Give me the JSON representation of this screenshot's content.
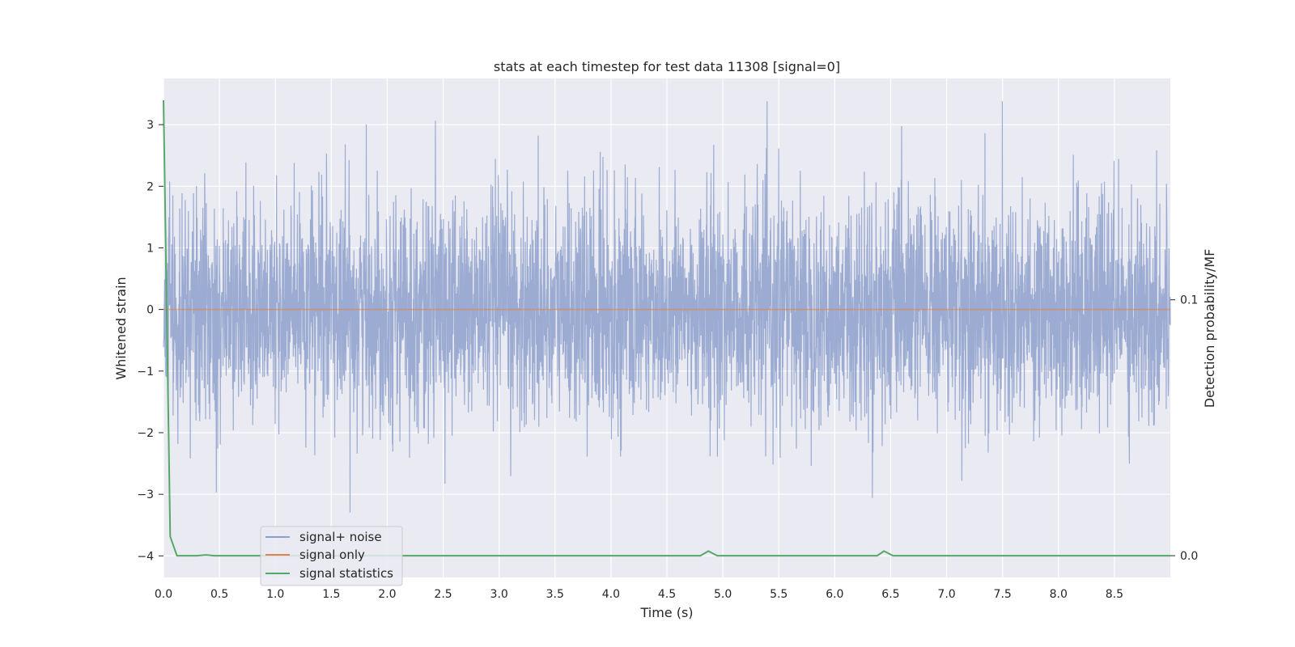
{
  "chart_data": {
    "type": "line",
    "title": "stats at each timestep for test data 11308 [signal=0]",
    "xlabel": "Time (s)",
    "ylabel": "Whitened strain",
    "y2label": "Detection probability/MF",
    "xlim": [
      0.0,
      9.0
    ],
    "ylim": [
      -4.35,
      3.75
    ],
    "y2lim": [
      -0.0085,
      0.1865
    ],
    "xticks": [
      "0.0",
      "0.5",
      "1.0",
      "1.5",
      "2.0",
      "2.5",
      "3.0",
      "3.5",
      "4.0",
      "4.5",
      "5.0",
      "5.5",
      "6.0",
      "6.5",
      "7.0",
      "7.5",
      "8.0",
      "8.5"
    ],
    "yticks": [
      "3",
      "2",
      "1",
      "0",
      "−1",
      "−2",
      "−3",
      "−4"
    ],
    "y2ticks": [
      "0.1",
      "0.0"
    ],
    "grid": true,
    "legend_position": "lower-left",
    "series": [
      {
        "name": "signal+ noise",
        "color": "#8da0cb",
        "axis": "left",
        "description_of_data": "whitened noise, approx. zero mean",
        "std": 0.9,
        "peak_max": 3.38,
        "peak_min": -4.0,
        "samples": 4400
      },
      {
        "name": "signal only",
        "color": "#dd8452",
        "axis": "left",
        "x": [
          0.0,
          9.0
        ],
        "y": [
          0.0,
          0.0
        ]
      },
      {
        "name": "signal statistics",
        "color": "#55a868",
        "axis": "right",
        "x": [
          0.0,
          0.06,
          0.12,
          0.2,
          0.3,
          0.38,
          0.45,
          0.6,
          1.0,
          2.0,
          3.0,
          4.0,
          4.7,
          4.8,
          4.87,
          4.95,
          5.05,
          6.0,
          6.3,
          6.38,
          6.44,
          6.52,
          6.6,
          7.0,
          8.0,
          9.0
        ],
        "y": [
          0.178,
          0.0075,
          0.0,
          0.0,
          0.0,
          0.0003,
          0.0,
          0.0,
          0.0,
          0.0,
          0.0,
          0.0,
          0.0,
          0.0,
          0.0018,
          0.0,
          0.0,
          0.0,
          0.0,
          0.0,
          0.0018,
          0.0,
          0.0,
          0.0,
          0.0,
          0.0
        ]
      }
    ]
  }
}
